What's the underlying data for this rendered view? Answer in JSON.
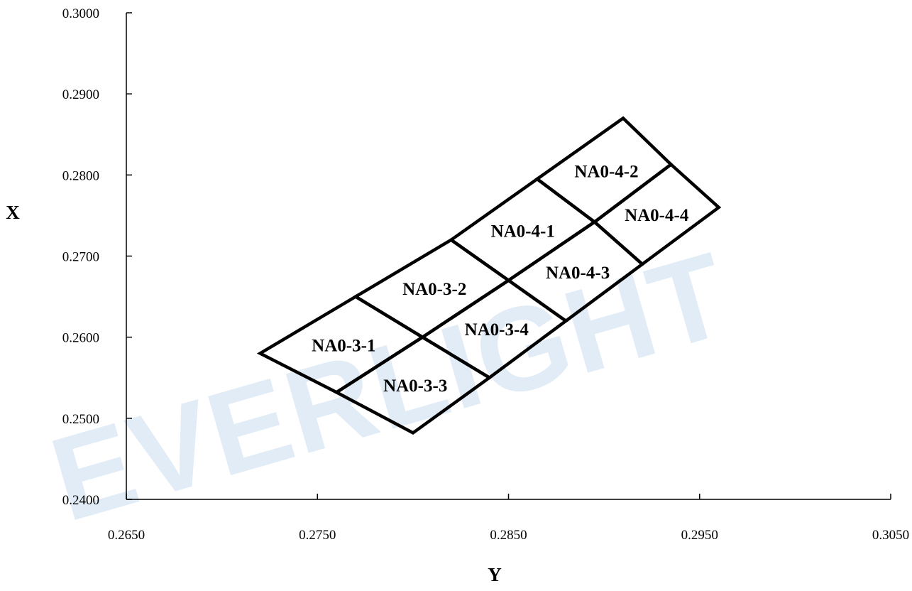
{
  "watermark": "EVERLIGHT",
  "chart_data": {
    "type": "line",
    "xlabel": "Y",
    "ylabel": "X",
    "xlim": [
      0.265,
      0.305
    ],
    "ylim": [
      0.24,
      0.3
    ],
    "x_ticks": [
      "0.2650",
      "0.2750",
      "0.2850",
      "0.2950",
      "0.3050"
    ],
    "y_ticks": [
      "0.2400",
      "0.2500",
      "0.2600",
      "0.2700",
      "0.2800",
      "0.2900",
      "0.3000"
    ],
    "grid": false,
    "line_color": "#000000",
    "bins": [
      {
        "name": "NA0-3-1",
        "corners": [
          [
            0.272,
            0.258
          ],
          [
            0.277,
            0.265
          ],
          [
            0.2805,
            0.26
          ],
          [
            0.276,
            0.2532
          ]
        ]
      },
      {
        "name": "NA0-3-2",
        "corners": [
          [
            0.277,
            0.265
          ],
          [
            0.282,
            0.272
          ],
          [
            0.285,
            0.267
          ],
          [
            0.2805,
            0.26
          ]
        ]
      },
      {
        "name": "NA0-3-3",
        "corners": [
          [
            0.276,
            0.2532
          ],
          [
            0.2805,
            0.26
          ],
          [
            0.284,
            0.255
          ],
          [
            0.28,
            0.2482
          ]
        ]
      },
      {
        "name": "NA0-3-4",
        "corners": [
          [
            0.2805,
            0.26
          ],
          [
            0.285,
            0.267
          ],
          [
            0.288,
            0.262
          ],
          [
            0.284,
            0.255
          ]
        ]
      },
      {
        "name": "NA0-4-1",
        "corners": [
          [
            0.282,
            0.272
          ],
          [
            0.2865,
            0.2795
          ],
          [
            0.2895,
            0.2742
          ],
          [
            0.285,
            0.267
          ]
        ]
      },
      {
        "name": "NA0-4-2",
        "corners": [
          [
            0.2865,
            0.2795
          ],
          [
            0.291,
            0.287
          ],
          [
            0.2935,
            0.2813
          ],
          [
            0.2895,
            0.2742
          ]
        ]
      },
      {
        "name": "NA0-4-3",
        "corners": [
          [
            0.285,
            0.267
          ],
          [
            0.2895,
            0.2742
          ],
          [
            0.292,
            0.269
          ],
          [
            0.288,
            0.262
          ]
        ]
      },
      {
        "name": "NA0-4-4",
        "corners": [
          [
            0.2895,
            0.2742
          ],
          [
            0.2935,
            0.2813
          ],
          [
            0.296,
            0.276
          ],
          [
            0.292,
            0.269
          ]
        ]
      }
    ]
  }
}
